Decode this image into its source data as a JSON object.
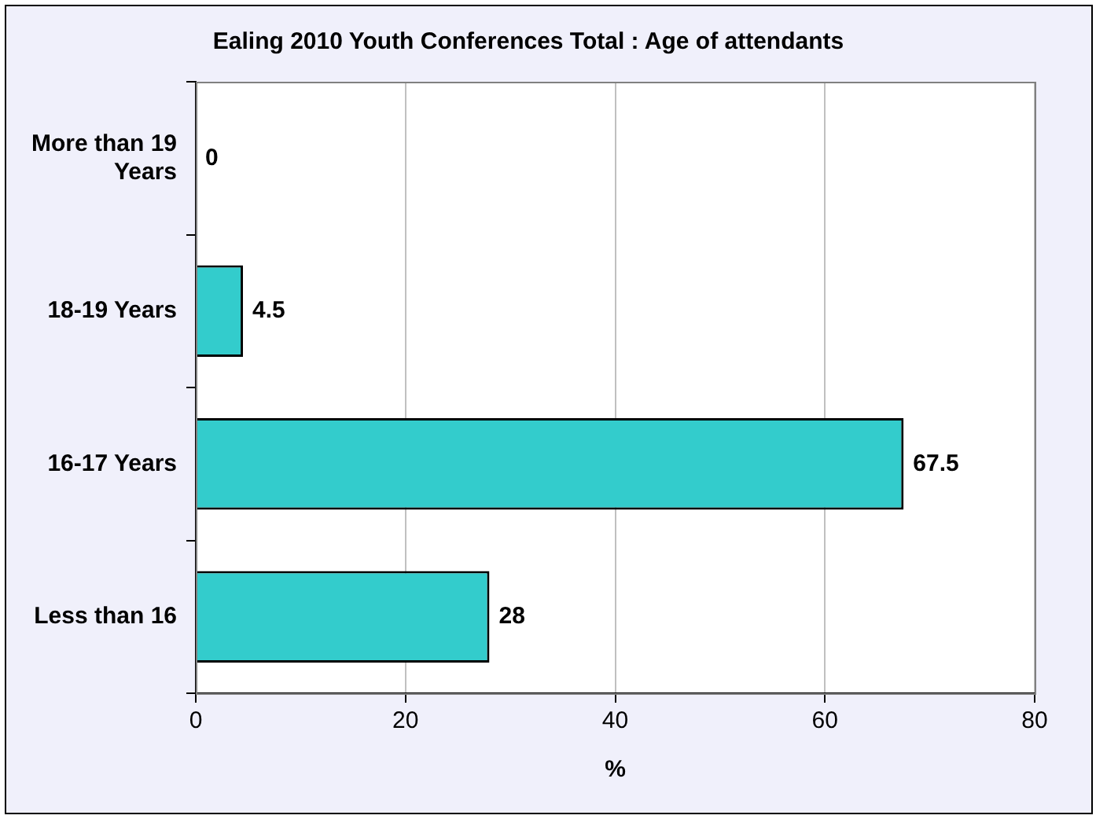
{
  "chart_data": {
    "type": "bar",
    "orientation": "horizontal",
    "title": "Ealing 2010 Youth Conferences Total : Age of attendants",
    "xlabel": "%",
    "categories": [
      "More than 19 Years",
      "18-19 Years",
      "16-17 Years",
      "Less than 16"
    ],
    "values": [
      0,
      4.5,
      67.5,
      28
    ],
    "color": "#33cccc",
    "xlim": [
      0,
      80
    ],
    "xticks": [
      0,
      20,
      40,
      60,
      80
    ],
    "grid": "x",
    "data_labels": true,
    "legend": false
  }
}
